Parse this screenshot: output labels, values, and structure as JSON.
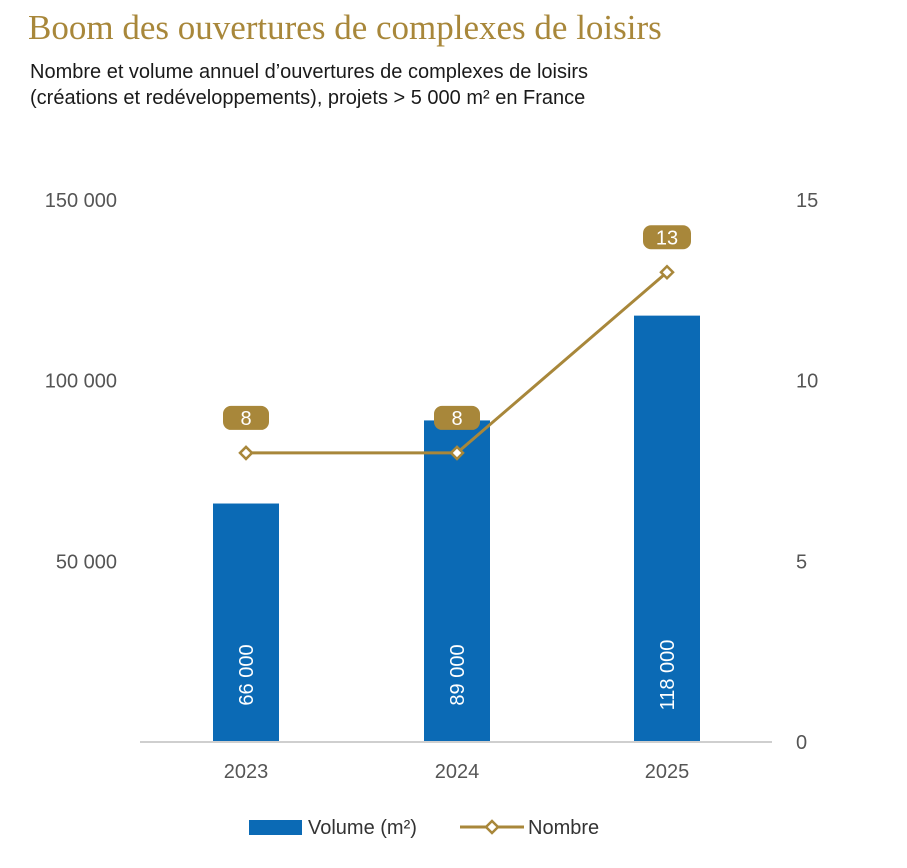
{
  "header": {
    "title": "Boom des ouvertures de complexes de loisirs",
    "subtitle_line1": "Nombre et volume annuel d’ouvertures de complexes de loisirs",
    "subtitle_line2": "(créations et redéveloppements), projets > 5 000 m² en France"
  },
  "chart_data": {
    "type": "bar",
    "categories": [
      "2023",
      "2024",
      "2025"
    ],
    "series": [
      {
        "name": "Volume (m²)",
        "type": "bar",
        "axis": "left",
        "values": [
          66000,
          89000,
          118000
        ],
        "labels": [
          "66 000",
          "89 000",
          "118 000"
        ],
        "color": "#0B6AB5"
      },
      {
        "name": "Nombre",
        "type": "line",
        "axis": "right",
        "marker": "diamond",
        "values": [
          8,
          8,
          13
        ],
        "labels": [
          "8",
          "8",
          "13"
        ],
        "color": "#A8873A"
      }
    ],
    "y_left": {
      "ylim": [
        0,
        150000
      ],
      "ticks": [
        50000,
        100000,
        150000
      ],
      "tick_labels": [
        "50 000",
        "100 000",
        "150 000"
      ]
    },
    "y_right": {
      "ylim": [
        0,
        15
      ],
      "ticks": [
        0,
        5,
        10,
        15
      ],
      "tick_labels": [
        "0",
        "5",
        "10",
        "15"
      ]
    },
    "grid": false,
    "legend_position": "bottom-center"
  }
}
